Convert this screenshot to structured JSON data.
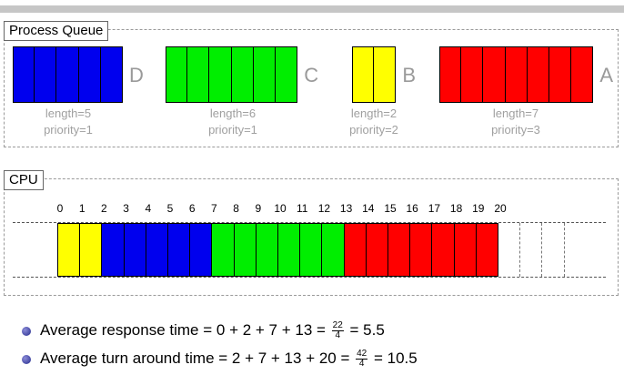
{
  "process_queue": {
    "label": "Process Queue",
    "processes": [
      {
        "name": "D",
        "length_text": "length=5",
        "priority_text": "priority=1",
        "cells": 5,
        "color": "#0000ee"
      },
      {
        "name": "C",
        "length_text": "length=6",
        "priority_text": "priority=1",
        "cells": 6,
        "color": "#00ee00"
      },
      {
        "name": "B",
        "length_text": "length=2",
        "priority_text": "priority=2",
        "cells": 2,
        "color": "#ffff00"
      },
      {
        "name": "A",
        "length_text": "length=7",
        "priority_text": "priority=3",
        "cells": 7,
        "color": "#ff0000"
      }
    ]
  },
  "cpu": {
    "label": "CPU",
    "ticks": [
      "0",
      "1",
      "2",
      "3",
      "4",
      "5",
      "6",
      "7",
      "8",
      "9",
      "10",
      "11",
      "12",
      "13",
      "14",
      "15",
      "16",
      "17",
      "18",
      "19",
      "20"
    ],
    "schedule": [
      {
        "process": "B",
        "start": 0,
        "end": 2,
        "color": "#ffff00"
      },
      {
        "process": "D",
        "start": 2,
        "end": 7,
        "color": "#0000ee"
      },
      {
        "process": "C",
        "start": 7,
        "end": 13,
        "color": "#00ee00"
      },
      {
        "process": "A",
        "start": 13,
        "end": 20,
        "color": "#ff0000"
      }
    ],
    "trailing_empty_slots": 3
  },
  "stats": [
    {
      "label": "Average response time",
      "expr": "= 0 + 2 + 7 + 13 =",
      "frac_num": "22",
      "frac_den": "4",
      "result": "= 5.5"
    },
    {
      "label": "Average turn around time",
      "expr": "= 2 + 7 + 13 + 20 =",
      "frac_num": "42",
      "frac_den": "4",
      "result": "= 10.5"
    }
  ]
}
